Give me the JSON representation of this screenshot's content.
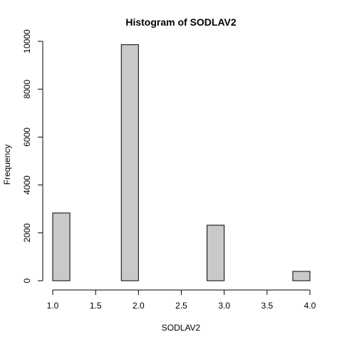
{
  "chart_data": {
    "type": "bar",
    "title": "Histogram of SODLAV2",
    "xlabel": "SODLAV2",
    "ylabel": "Frequency",
    "bin_width": 0.2,
    "bins": [
      {
        "start": 1.0,
        "end": 1.2,
        "count": 2830
      },
      {
        "start": 1.2,
        "end": 1.4,
        "count": 0
      },
      {
        "start": 1.4,
        "end": 1.6,
        "count": 0
      },
      {
        "start": 1.6,
        "end": 1.8,
        "count": 0
      },
      {
        "start": 1.8,
        "end": 2.0,
        "count": 9860
      },
      {
        "start": 2.0,
        "end": 2.2,
        "count": 0
      },
      {
        "start": 2.2,
        "end": 2.4,
        "count": 0
      },
      {
        "start": 2.4,
        "end": 2.6,
        "count": 0
      },
      {
        "start": 2.6,
        "end": 2.8,
        "count": 0
      },
      {
        "start": 2.8,
        "end": 3.0,
        "count": 2320
      },
      {
        "start": 3.0,
        "end": 3.2,
        "count": 0
      },
      {
        "start": 3.2,
        "end": 3.4,
        "count": 0
      },
      {
        "start": 3.4,
        "end": 3.6,
        "count": 0
      },
      {
        "start": 3.6,
        "end": 3.8,
        "count": 0
      },
      {
        "start": 3.8,
        "end": 4.0,
        "count": 390
      }
    ],
    "xlim": [
      1.0,
      4.0
    ],
    "ylim": [
      0,
      10000
    ],
    "x_ticks": [
      {
        "value": 1.0,
        "label": "1.0"
      },
      {
        "value": 1.5,
        "label": "1.5"
      },
      {
        "value": 2.0,
        "label": "2.0"
      },
      {
        "value": 2.5,
        "label": "2.5"
      },
      {
        "value": 3.0,
        "label": "3.0"
      },
      {
        "value": 3.5,
        "label": "3.5"
      },
      {
        "value": 4.0,
        "label": "4.0"
      }
    ],
    "y_ticks": [
      {
        "value": 0,
        "label": "0"
      },
      {
        "value": 2000,
        "label": "2000"
      },
      {
        "value": 4000,
        "label": "4000"
      },
      {
        "value": 6000,
        "label": "6000"
      },
      {
        "value": 8000,
        "label": "8000"
      },
      {
        "value": 10000,
        "label": "10000"
      }
    ],
    "grid": false,
    "bar_fill": "#c9c9c9",
    "bar_stroke": "#000000"
  }
}
